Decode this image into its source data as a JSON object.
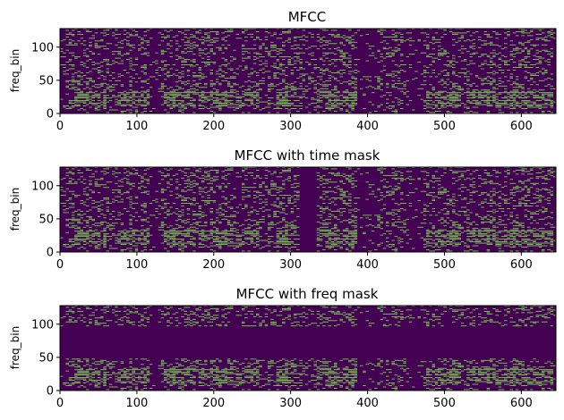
{
  "colors": {
    "background": "#440154",
    "foreground": "#7ad151",
    "axis": "#000000"
  },
  "chart_data": [
    {
      "type": "heatmap",
      "title": "MFCC",
      "xlabel": "",
      "ylabel": "freq_bin",
      "xlim": [
        0,
        645
      ],
      "ylim": [
        0,
        128
      ],
      "xticks": [
        0,
        100,
        200,
        300,
        400,
        500,
        600
      ],
      "yticks": [
        0,
        50,
        100
      ],
      "grid": false,
      "mask": null
    },
    {
      "type": "heatmap",
      "title": "MFCC with time mask",
      "xlabel": "",
      "ylabel": "freq_bin",
      "xlim": [
        0,
        645
      ],
      "ylim": [
        0,
        128
      ],
      "xticks": [
        0,
        100,
        200,
        300,
        400,
        500,
        600
      ],
      "yticks": [
        0,
        50,
        100
      ],
      "grid": false,
      "mask": {
        "axis": "time",
        "range": [
          312,
          333
        ]
      }
    },
    {
      "type": "heatmap",
      "title": "MFCC with freq mask",
      "xlabel": "",
      "ylabel": "freq_bin",
      "xlim": [
        0,
        645
      ],
      "ylim": [
        0,
        128
      ],
      "xticks": [
        0,
        100,
        200,
        300,
        400,
        500,
        600
      ],
      "yticks": [
        0,
        50,
        100
      ],
      "grid": false,
      "mask": {
        "axis": "freq",
        "range": [
          48,
          96
        ]
      }
    }
  ]
}
